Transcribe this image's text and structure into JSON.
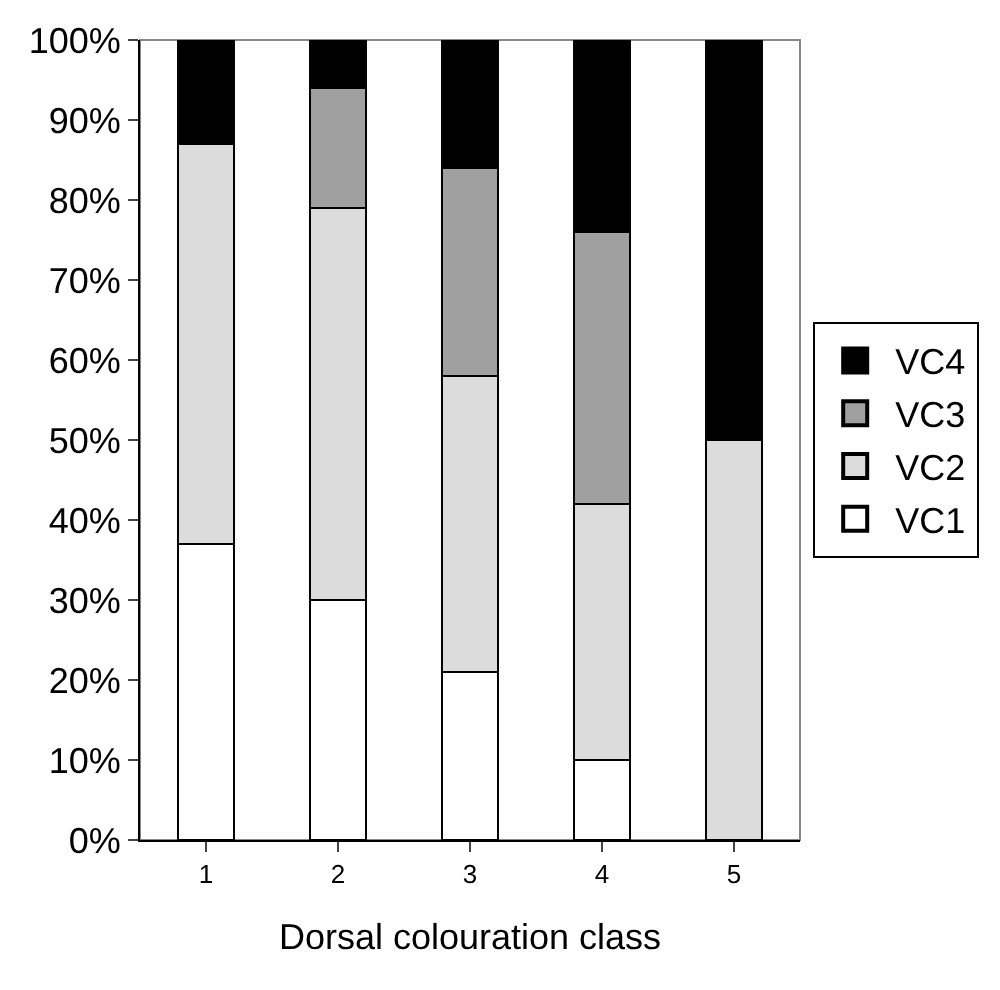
{
  "chart_data": {
    "type": "bar",
    "stacked": true,
    "xlabel": "Dorsal colouration class",
    "categories": [
      "1",
      "2",
      "3",
      "4",
      "5"
    ],
    "series": [
      {
        "name": "VC1",
        "color": "#ffffff",
        "values": [
          37,
          30,
          21,
          10,
          0
        ]
      },
      {
        "name": "VC2",
        "color": "#dcdcdc",
        "values": [
          50,
          49,
          37,
          32,
          50
        ]
      },
      {
        "name": "VC3",
        "color": "#a0a0a0",
        "values": [
          0,
          15,
          26,
          34,
          0
        ]
      },
      {
        "name": "VC4",
        "color": "#000000",
        "values": [
          13,
          6,
          16,
          24,
          50
        ]
      }
    ],
    "ylim": [
      0,
      100
    ],
    "yticks": [
      {
        "value": 0,
        "label": "0%"
      },
      {
        "value": 10,
        "label": "10%"
      },
      {
        "value": 20,
        "label": "20%"
      },
      {
        "value": 30,
        "label": "30%"
      },
      {
        "value": 40,
        "label": "40%"
      },
      {
        "value": 50,
        "label": "50%"
      },
      {
        "value": 60,
        "label": "60%"
      },
      {
        "value": 70,
        "label": "70%"
      },
      {
        "value": 80,
        "label": "80%"
      },
      {
        "value": 90,
        "label": "90%"
      },
      {
        "value": 100,
        "label": "100%"
      }
    ],
    "grid": false,
    "legend": "right"
  }
}
